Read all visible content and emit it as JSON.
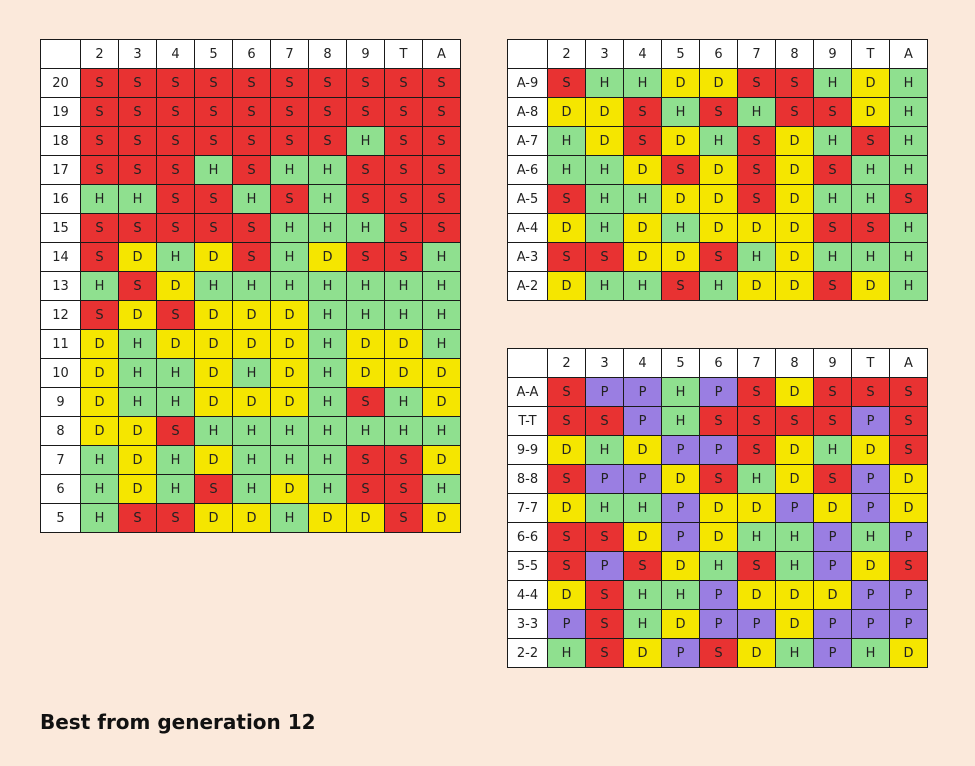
{
  "dealer_cards": [
    "2",
    "3",
    "4",
    "5",
    "6",
    "7",
    "8",
    "9",
    "T",
    "A"
  ],
  "colors": {
    "S": "#e83232",
    "H": "#8fe08f",
    "D": "#f5e600",
    "P": "#9a7ee2",
    "background": "#fbe9db"
  },
  "caption": "Best from generation 12",
  "hard_totals": [
    {
      "label": "20",
      "cells": [
        "S",
        "S",
        "S",
        "S",
        "S",
        "S",
        "S",
        "S",
        "S",
        "S"
      ]
    },
    {
      "label": "19",
      "cells": [
        "S",
        "S",
        "S",
        "S",
        "S",
        "S",
        "S",
        "S",
        "S",
        "S"
      ]
    },
    {
      "label": "18",
      "cells": [
        "S",
        "S",
        "S",
        "S",
        "S",
        "S",
        "S",
        "H",
        "S",
        "S"
      ]
    },
    {
      "label": "17",
      "cells": [
        "S",
        "S",
        "S",
        "H",
        "S",
        "H",
        "H",
        "S",
        "S",
        "S"
      ]
    },
    {
      "label": "16",
      "cells": [
        "H",
        "H",
        "S",
        "S",
        "H",
        "S",
        "H",
        "S",
        "S",
        "S"
      ]
    },
    {
      "label": "15",
      "cells": [
        "S",
        "S",
        "S",
        "S",
        "S",
        "H",
        "H",
        "H",
        "S",
        "S"
      ]
    },
    {
      "label": "14",
      "cells": [
        "S",
        "D",
        "H",
        "D",
        "S",
        "H",
        "D",
        "S",
        "S",
        "H"
      ]
    },
    {
      "label": "13",
      "cells": [
        "H",
        "S",
        "D",
        "H",
        "H",
        "H",
        "H",
        "H",
        "H",
        "H"
      ]
    },
    {
      "label": "12",
      "cells": [
        "S",
        "D",
        "S",
        "D",
        "D",
        "D",
        "H",
        "H",
        "H",
        "H"
      ]
    },
    {
      "label": "11",
      "cells": [
        "D",
        "H",
        "D",
        "D",
        "D",
        "D",
        "H",
        "D",
        "D",
        "H"
      ]
    },
    {
      "label": "10",
      "cells": [
        "D",
        "H",
        "H",
        "D",
        "H",
        "D",
        "H",
        "D",
        "D",
        "D"
      ]
    },
    {
      "label": "9",
      "cells": [
        "D",
        "H",
        "H",
        "D",
        "D",
        "D",
        "H",
        "S",
        "H",
        "D"
      ]
    },
    {
      "label": "8",
      "cells": [
        "D",
        "D",
        "S",
        "H",
        "H",
        "H",
        "H",
        "H",
        "H",
        "H"
      ]
    },
    {
      "label": "7",
      "cells": [
        "H",
        "D",
        "H",
        "D",
        "H",
        "H",
        "H",
        "S",
        "S",
        "D"
      ]
    },
    {
      "label": "6",
      "cells": [
        "H",
        "D",
        "H",
        "S",
        "H",
        "D",
        "H",
        "S",
        "S",
        "H"
      ]
    },
    {
      "label": "5",
      "cells": [
        "H",
        "S",
        "S",
        "D",
        "D",
        "H",
        "D",
        "D",
        "S",
        "D"
      ]
    }
  ],
  "soft_totals": [
    {
      "label": "A-9",
      "cells": [
        "S",
        "H",
        "H",
        "D",
        "D",
        "S",
        "S",
        "H",
        "D",
        "H"
      ]
    },
    {
      "label": "A-8",
      "cells": [
        "D",
        "D",
        "S",
        "H",
        "S",
        "H",
        "S",
        "S",
        "D",
        "H"
      ]
    },
    {
      "label": "A-7",
      "cells": [
        "H",
        "D",
        "S",
        "D",
        "H",
        "S",
        "D",
        "H",
        "S",
        "H"
      ]
    },
    {
      "label": "A-6",
      "cells": [
        "H",
        "H",
        "D",
        "S",
        "D",
        "S",
        "D",
        "S",
        "H",
        "H"
      ]
    },
    {
      "label": "A-5",
      "cells": [
        "S",
        "H",
        "H",
        "D",
        "D",
        "S",
        "D",
        "H",
        "H",
        "S"
      ]
    },
    {
      "label": "A-4",
      "cells": [
        "D",
        "H",
        "D",
        "H",
        "D",
        "D",
        "D",
        "S",
        "S",
        "H"
      ]
    },
    {
      "label": "A-3",
      "cells": [
        "S",
        "S",
        "D",
        "D",
        "S",
        "H",
        "D",
        "H",
        "H",
        "H"
      ]
    },
    {
      "label": "A-2",
      "cells": [
        "D",
        "H",
        "H",
        "S",
        "H",
        "D",
        "D",
        "S",
        "D",
        "H"
      ]
    }
  ],
  "pairs": [
    {
      "label": "A-A",
      "cells": [
        "S",
        "P",
        "P",
        "H",
        "P",
        "S",
        "D",
        "S",
        "S",
        "S"
      ]
    },
    {
      "label": "T-T",
      "cells": [
        "S",
        "S",
        "P",
        "H",
        "S",
        "S",
        "S",
        "S",
        "P",
        "S"
      ]
    },
    {
      "label": "9-9",
      "cells": [
        "D",
        "H",
        "D",
        "P",
        "P",
        "S",
        "D",
        "H",
        "D",
        "S"
      ]
    },
    {
      "label": "8-8",
      "cells": [
        "S",
        "P",
        "P",
        "D",
        "S",
        "H",
        "D",
        "S",
        "P",
        "D"
      ]
    },
    {
      "label": "7-7",
      "cells": [
        "D",
        "H",
        "H",
        "P",
        "D",
        "D",
        "P",
        "D",
        "P",
        "D"
      ]
    },
    {
      "label": "6-6",
      "cells": [
        "S",
        "S",
        "D",
        "P",
        "D",
        "H",
        "H",
        "P",
        "H",
        "P"
      ]
    },
    {
      "label": "5-5",
      "cells": [
        "S",
        "P",
        "S",
        "D",
        "H",
        "S",
        "H",
        "P",
        "D",
        "S"
      ]
    },
    {
      "label": "4-4",
      "cells": [
        "D",
        "S",
        "H",
        "H",
        "P",
        "D",
        "D",
        "D",
        "P",
        "P"
      ]
    },
    {
      "label": "3-3",
      "cells": [
        "P",
        "S",
        "H",
        "D",
        "P",
        "P",
        "D",
        "P",
        "P",
        "P"
      ]
    },
    {
      "label": "2-2",
      "cells": [
        "H",
        "S",
        "D",
        "P",
        "S",
        "D",
        "H",
        "P",
        "H",
        "D"
      ]
    }
  ]
}
